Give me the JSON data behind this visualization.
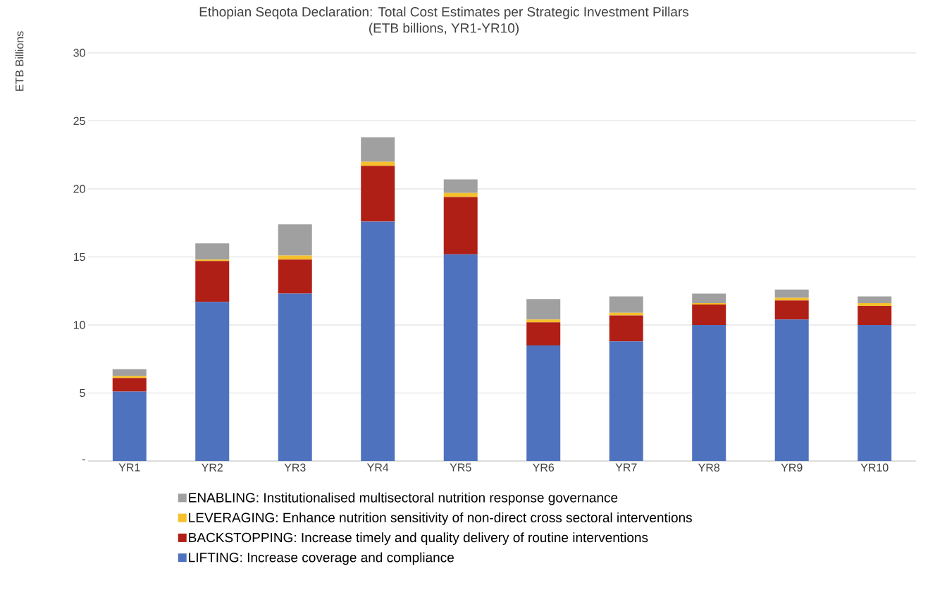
{
  "chart_data": {
    "type": "bar",
    "stacked": true,
    "title": "Ethopian Seqota Declaration: Total Cost Estimates per Strategic Investment Pillars",
    "subtitle": "(ETB billions, YR1-YR10)",
    "ylabel": "ETB Billions",
    "categories": [
      "YR1",
      "YR2",
      "YR3",
      "YR4",
      "YR5",
      "YR6",
      "YR7",
      "YR8",
      "YR9",
      "YR10"
    ],
    "series": [
      {
        "name": "LIFTING: Increase coverage and compliance",
        "color": "#4f72be",
        "values": [
          5.1,
          11.7,
          12.3,
          17.6,
          15.2,
          8.5,
          8.8,
          10.0,
          10.4,
          10.0
        ]
      },
      {
        "name": "BACKSTOPPING: Increase timely and quality delivery of routine interventions",
        "color": "#b01f16",
        "values": [
          1.0,
          3.0,
          2.5,
          4.1,
          4.2,
          1.7,
          1.9,
          1.5,
          1.4,
          1.4
        ]
      },
      {
        "name": "LEVERAGING:  Enhance nutrition sensitivity of non-direct cross sectoral interventions",
        "color": "#f5c02c",
        "values": [
          0.15,
          0.1,
          0.3,
          0.3,
          0.3,
          0.2,
          0.2,
          0.1,
          0.2,
          0.2
        ]
      },
      {
        "name": "ENABLING:  Institutionalised multisectoral nutrition response governance",
        "color": "#a0a0a0",
        "values": [
          0.5,
          1.2,
          2.3,
          1.8,
          1.0,
          1.5,
          1.2,
          0.7,
          0.6,
          0.5
        ]
      }
    ],
    "ylim": [
      0,
      30
    ],
    "yticks": [
      {
        "value": 0,
        "label": "-"
      },
      5,
      10,
      15,
      20,
      25,
      30
    ],
    "grid": "y",
    "legend": "bottom"
  }
}
